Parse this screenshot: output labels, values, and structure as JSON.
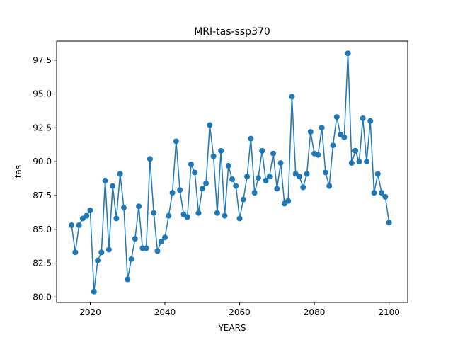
{
  "chart_data": {
    "type": "line",
    "title": "MRI-tas-ssp370",
    "xlabel": "YEARS",
    "ylabel": "tas",
    "xlim": [
      2011,
      2105
    ],
    "ylim": [
      79.6,
      98.9
    ],
    "xticks": [
      2020,
      2040,
      2060,
      2080,
      2100
    ],
    "xtick_labels": [
      "2020",
      "2040",
      "2060",
      "2080",
      "2100"
    ],
    "yticks": [
      80.0,
      82.5,
      85.0,
      87.5,
      90.0,
      92.5,
      95.0,
      97.5
    ],
    "ytick_labels": [
      "80.0",
      "82.5",
      "85.0",
      "87.5",
      "90.0",
      "92.5",
      "95.0",
      "97.5"
    ],
    "grid": false,
    "color": "#1f77b4",
    "marker": "circle",
    "series": [
      {
        "x": [
          2015,
          2016,
          2017,
          2018,
          2019,
          2020,
          2021,
          2022,
          2023,
          2024,
          2025,
          2026,
          2027,
          2028,
          2029,
          2030,
          2031,
          2032,
          2033,
          2034,
          2035,
          2036,
          2037,
          2038,
          2039,
          2040,
          2041,
          2042,
          2043,
          2044,
          2045,
          2046,
          2047,
          2048,
          2049,
          2050,
          2051,
          2052,
          2053,
          2054,
          2055,
          2056,
          2057,
          2058,
          2059,
          2060,
          2061,
          2062,
          2063,
          2064,
          2065,
          2066,
          2067,
          2068,
          2069,
          2070,
          2071,
          2072,
          2073,
          2074,
          2075,
          2076,
          2077,
          2078,
          2079,
          2080,
          2081,
          2082,
          2083,
          2084,
          2085,
          2086,
          2087,
          2088,
          2089,
          2090,
          2091,
          2092,
          2093,
          2094,
          2095,
          2096,
          2097,
          2098,
          2099,
          2100
        ],
        "values": [
          85.3,
          83.3,
          85.3,
          85.8,
          86.0,
          86.4,
          80.4,
          82.7,
          83.3,
          88.6,
          83.5,
          88.2,
          85.8,
          89.1,
          86.6,
          81.3,
          82.8,
          84.3,
          86.7,
          83.6,
          83.6,
          90.2,
          86.2,
          83.4,
          84.1,
          84.4,
          86.0,
          87.7,
          91.5,
          87.9,
          86.1,
          85.9,
          89.8,
          89.2,
          86.2,
          88.0,
          88.4,
          92.7,
          90.4,
          86.2,
          90.8,
          86.0,
          89.7,
          88.7,
          88.2,
          85.8,
          87.2,
          88.9,
          91.7,
          87.7,
          88.8,
          90.8,
          88.6,
          88.9,
          90.6,
          88.0,
          89.9,
          86.9,
          87.1,
          94.8,
          89.1,
          88.9,
          88.1,
          89.1,
          92.2,
          90.6,
          90.5,
          92.5,
          89.2,
          88.2,
          91.2,
          93.3,
          92.0,
          91.8,
          98.0,
          89.9,
          90.8,
          90.0,
          93.2,
          90.0,
          93.0,
          87.7,
          89.1,
          87.7,
          87.4,
          85.5
        ]
      }
    ]
  }
}
